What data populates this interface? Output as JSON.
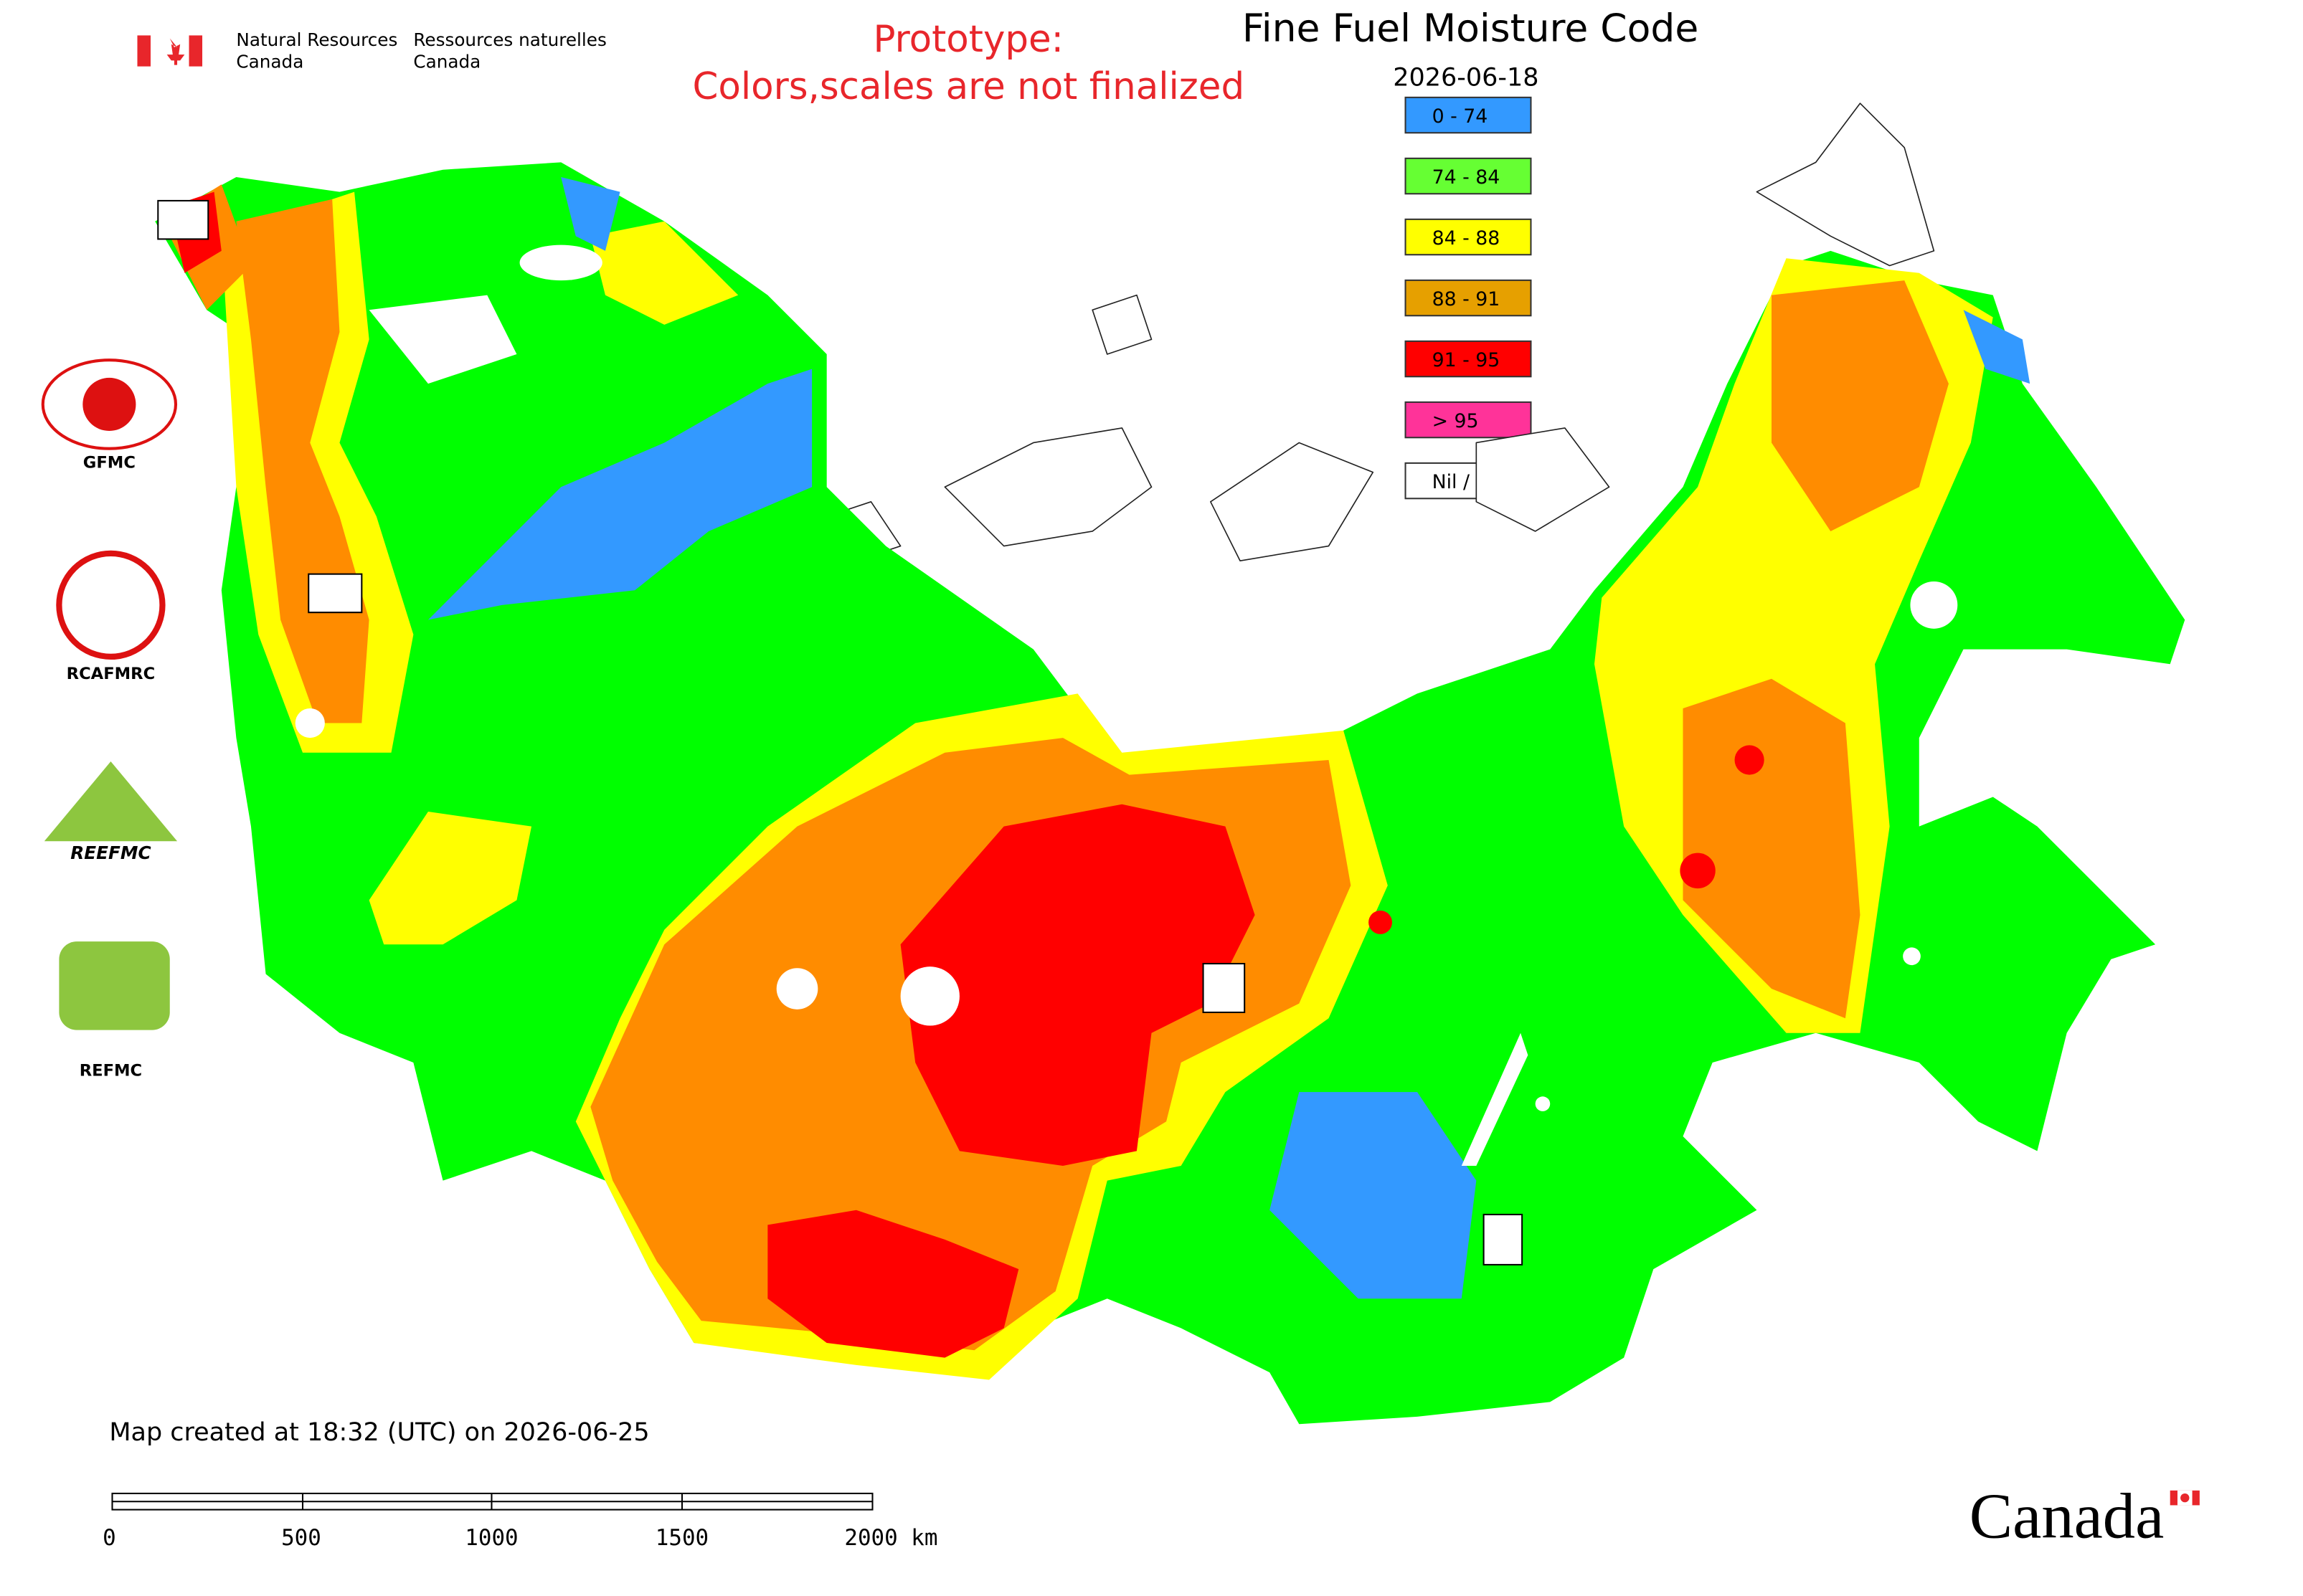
{
  "header": {
    "agency_en": [
      "Natural Resources",
      "Canada"
    ],
    "agency_fr": [
      "Ressources naturelles",
      "Canada"
    ],
    "notice": [
      "Prototype:",
      "Colors,scales are not finalized"
    ],
    "title": "Fine Fuel Moisture Code",
    "date": "2026-06-18"
  },
  "legend": [
    {
      "label": "0 - 74",
      "color": "#3399ff"
    },
    {
      "label": "74 - 84",
      "color": "#66ff33"
    },
    {
      "label": "84 - 88",
      "color": "#ffff00"
    },
    {
      "label": "88 - 91",
      "color": "#e6a000"
    },
    {
      "label": "91 - 95",
      "color": "#ff0000"
    },
    {
      "label": "> 95",
      "color": "#ff3399"
    },
    {
      "label": "Nil / s.o.",
      "color": "#ffffff"
    }
  ],
  "logos": [
    "GFMC",
    "RCAFMRC",
    "REEFMC",
    "REFMC"
  ],
  "footer": {
    "created": "Map created at 18:32 (UTC) on 2026-06-25",
    "wordmark": "Canada"
  },
  "scale_bar": [
    "0",
    "500",
    "1000",
    "1500",
    "2000 km"
  ]
}
